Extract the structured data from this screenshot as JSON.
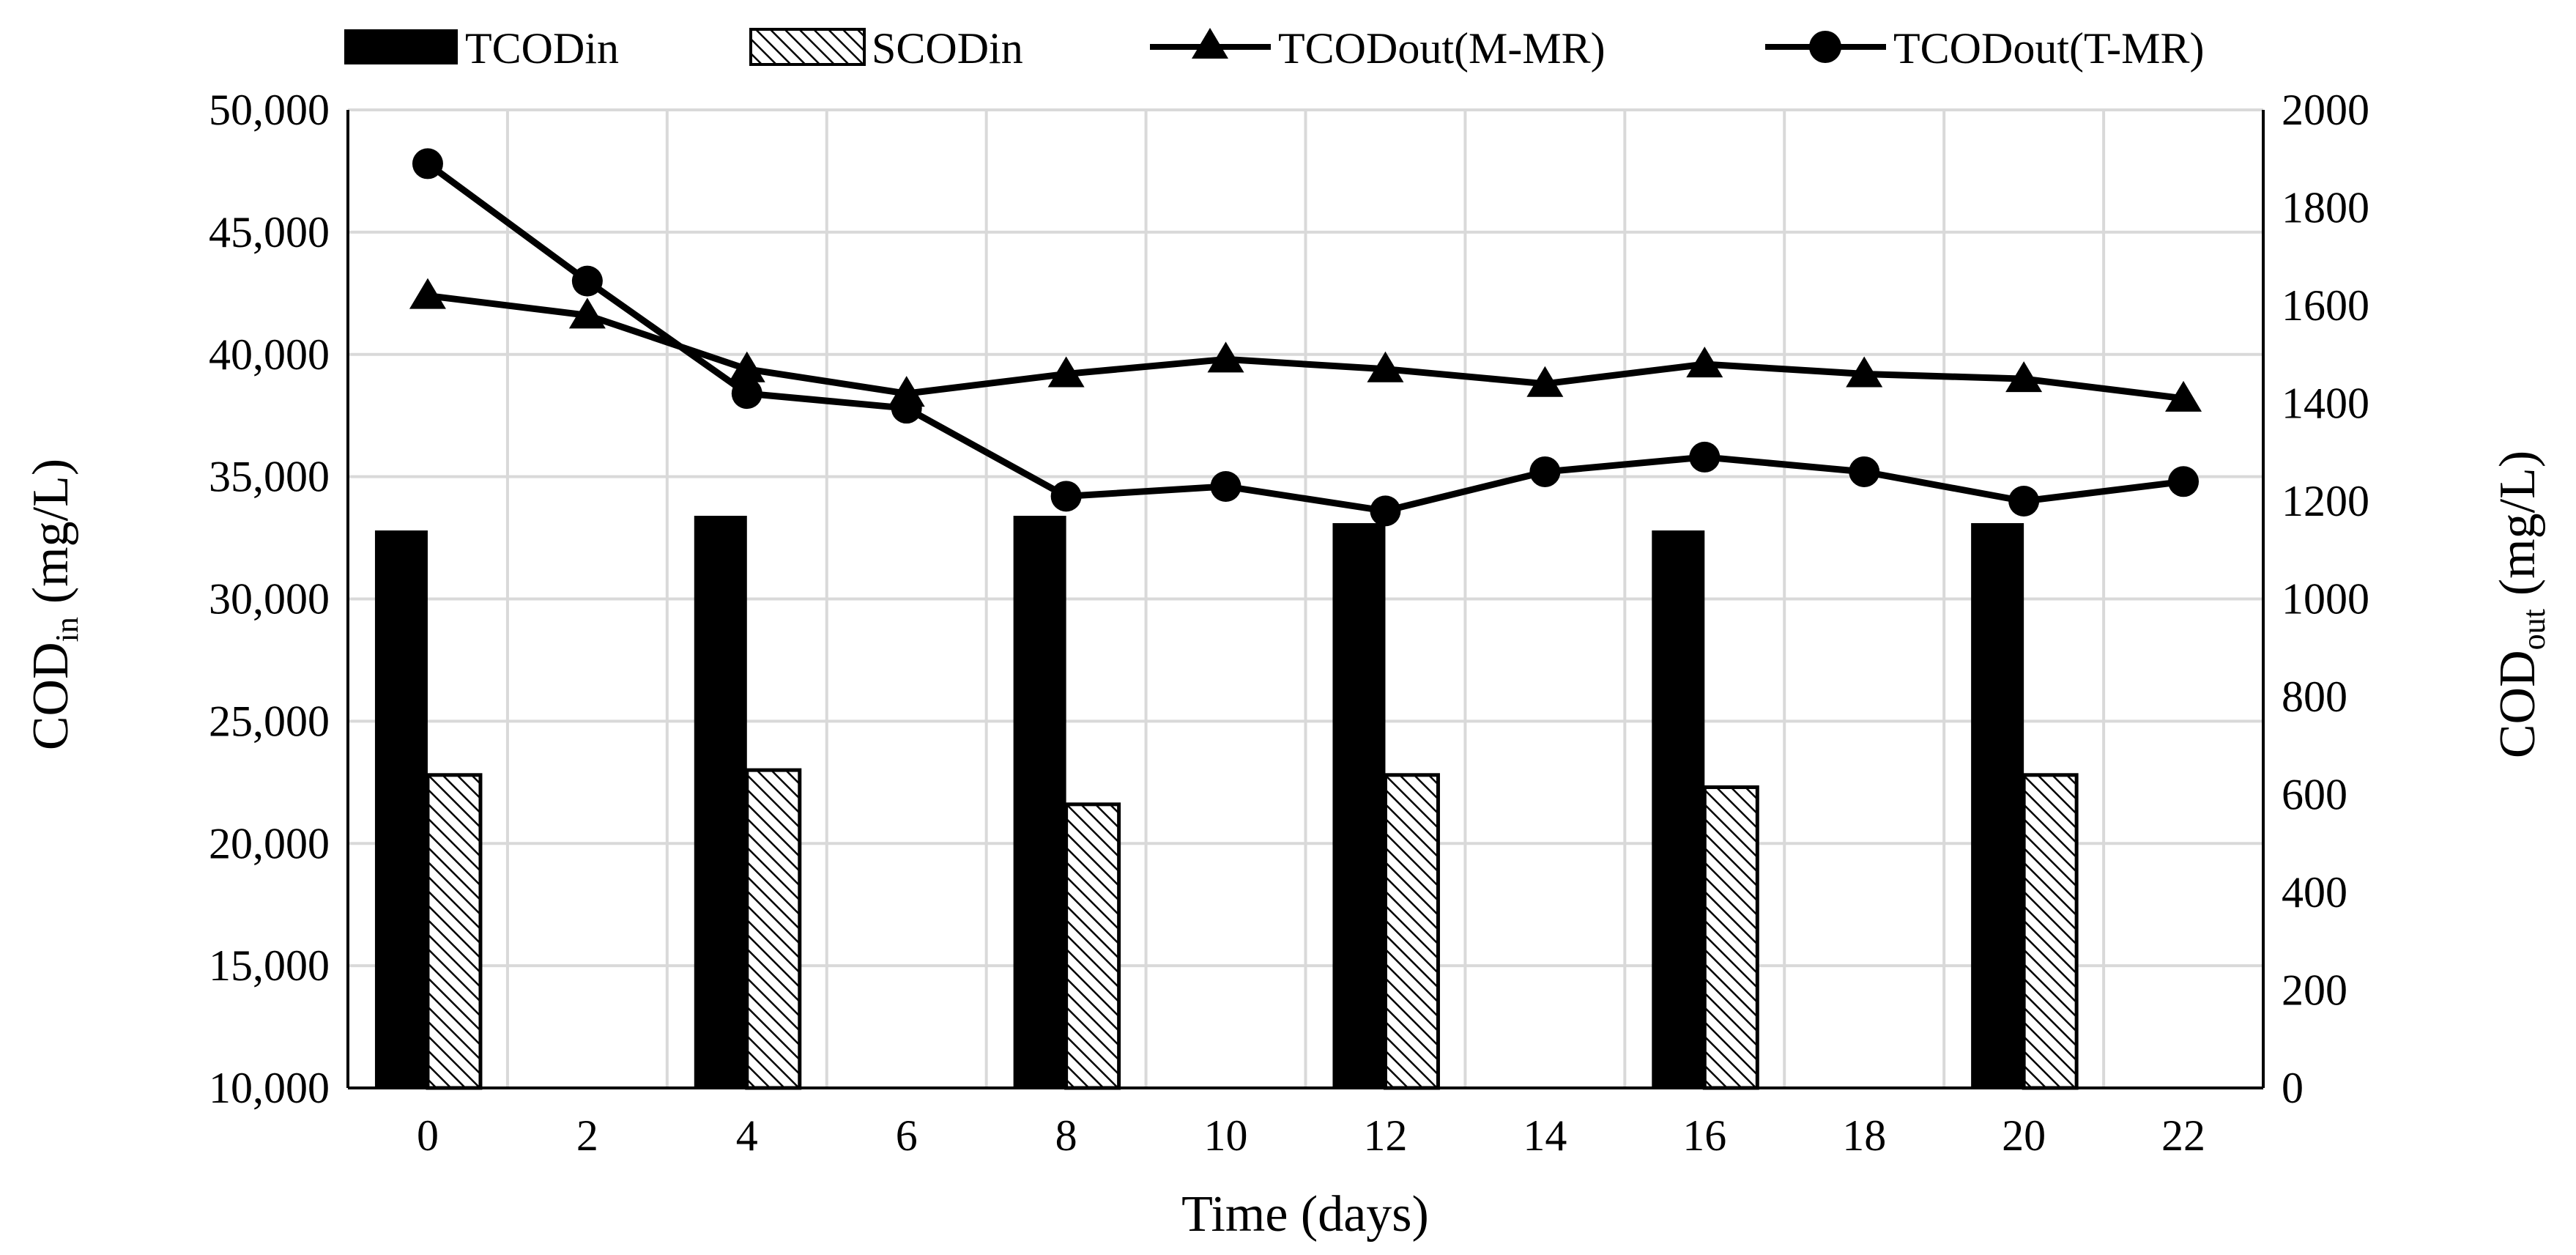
{
  "chart_data": {
    "type": "bar+line",
    "title": "",
    "xlabel": "Time (days)",
    "ylabel_left": {
      "base": "COD",
      "sub": "in",
      "unit": "(mg/L)"
    },
    "ylabel_right": {
      "base": "COD",
      "sub": "out",
      "unit": "(mg/L)"
    },
    "x_categories": [
      "0",
      "2",
      "4",
      "6",
      "8",
      "10",
      "12",
      "14",
      "16",
      "18",
      "20",
      "22"
    ],
    "ylim_left": [
      10000,
      50000
    ],
    "yticks_left": [
      "10,000",
      "15,000",
      "20,000",
      "25,000",
      "30,000",
      "35,000",
      "40,000",
      "45,000",
      "50,000"
    ],
    "ylim_right": [
      0,
      2000
    ],
    "yticks_right": [
      "0",
      "200",
      "400",
      "600",
      "800",
      "1000",
      "1200",
      "1400",
      "1600",
      "1800",
      "2000"
    ],
    "grid": true,
    "legend_position": "top",
    "bar_series": [
      {
        "name": "TCODin",
        "axis": "left",
        "fill": "solid-black",
        "x": [
          0,
          4,
          8,
          12,
          16,
          20
        ],
        "values": [
          32800,
          33400,
          33400,
          33100,
          32800,
          33100
        ]
      },
      {
        "name": "SCODin",
        "axis": "left",
        "fill": "hatched",
        "x": [
          0,
          4,
          8,
          12,
          16,
          20
        ],
        "values": [
          22800,
          23000,
          21600,
          22800,
          22300,
          22800
        ]
      }
    ],
    "line_series": [
      {
        "name": "TCODout(M-MR)",
        "axis": "right",
        "marker": "triangle",
        "x": [
          0,
          2,
          4,
          6,
          8,
          10,
          12,
          14,
          16,
          18,
          20,
          22
        ],
        "values": [
          1620,
          1580,
          1470,
          1420,
          1460,
          1490,
          1470,
          1440,
          1480,
          1460,
          1450,
          1410
        ]
      },
      {
        "name": "TCODout(T-MR)",
        "axis": "right",
        "marker": "circle",
        "x": [
          0,
          2,
          4,
          6,
          8,
          10,
          12,
          14,
          16,
          18,
          20,
          22
        ],
        "values": [
          1890,
          1650,
          1420,
          1390,
          1210,
          1230,
          1180,
          1260,
          1290,
          1260,
          1200,
          1240
        ]
      }
    ],
    "colors": {
      "primary": "#000000",
      "grid": "#d9d9d9",
      "background": "#ffffff"
    }
  }
}
